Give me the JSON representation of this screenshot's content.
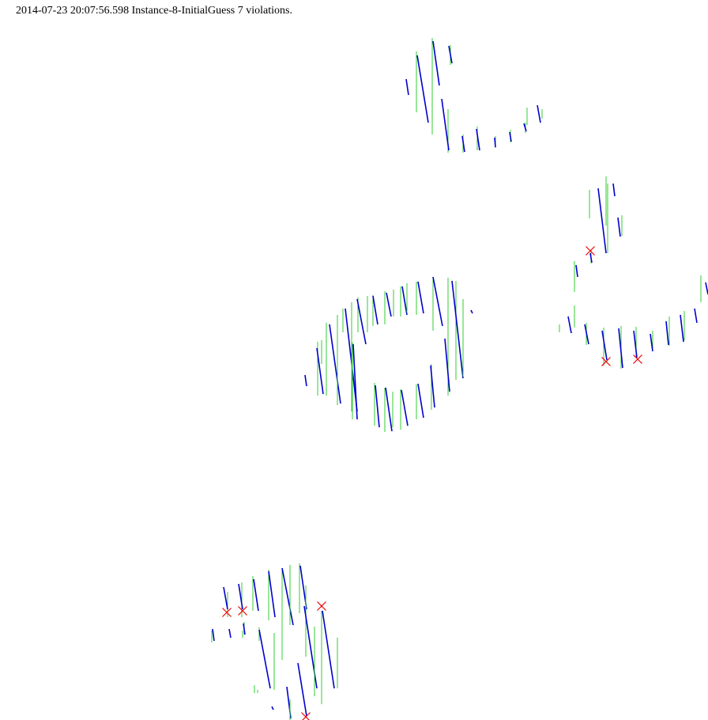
{
  "header": {
    "text": "2014-07-23 20:07:56.598 Instance-8-InitialGuess 7 violations."
  },
  "colors": {
    "reference": "#33cc33",
    "solution": "#0000cc",
    "violation": "#ee0000",
    "background": "#ffffff"
  },
  "legend_meaning": {
    "reference": "green vertical segment",
    "solution": "blue slanted segment",
    "violation": "red x marker"
  }
}
